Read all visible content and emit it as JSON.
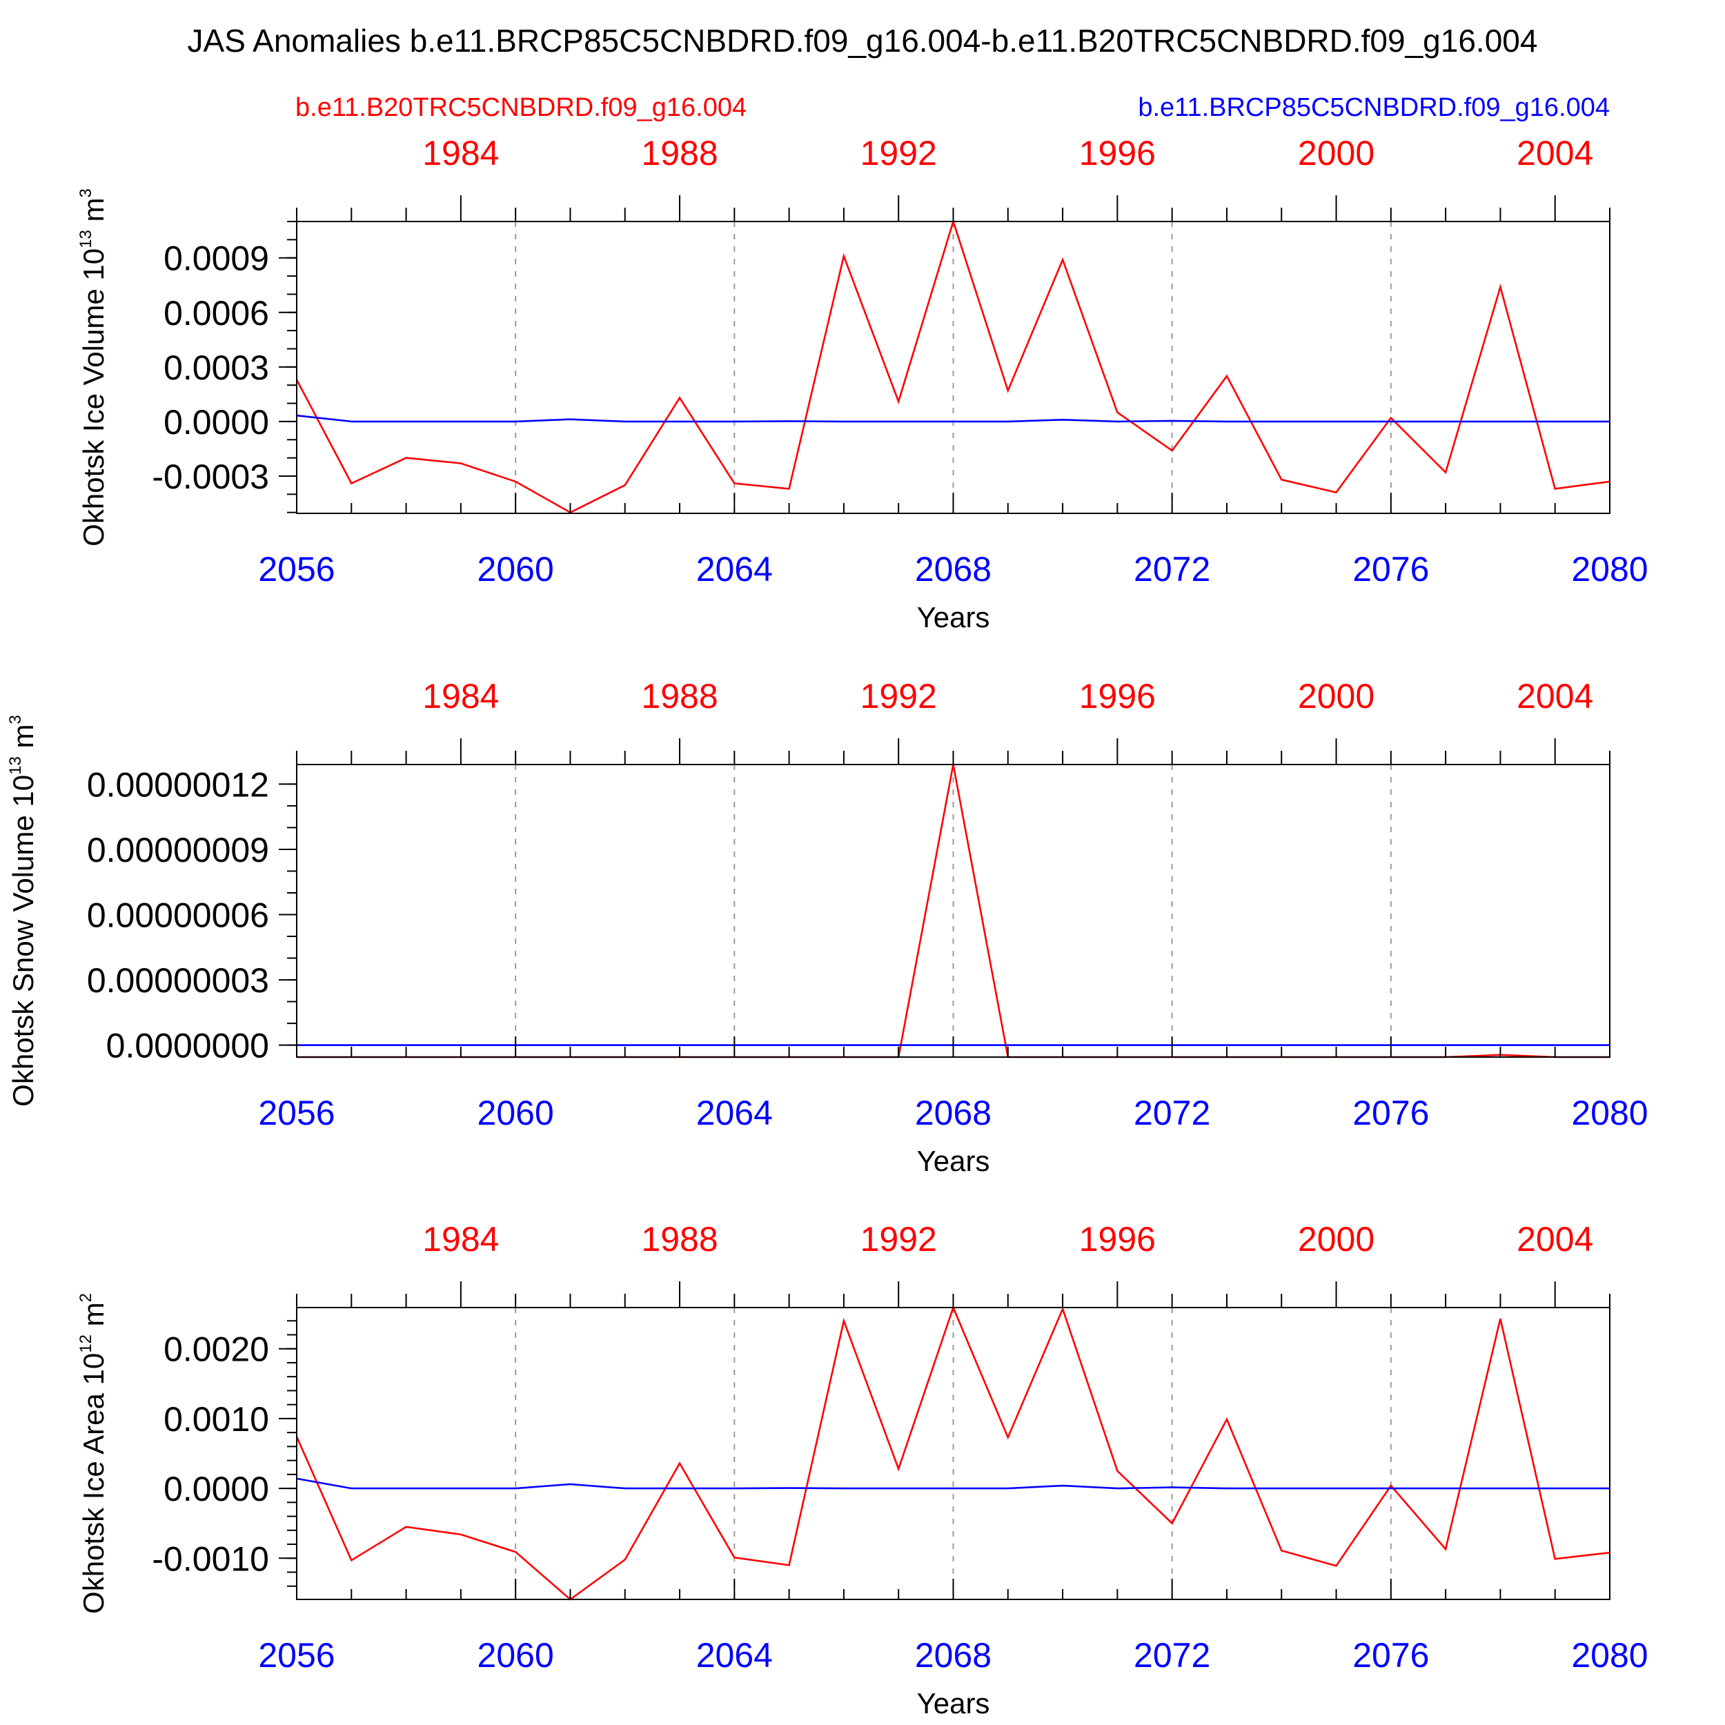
{
  "title": "JAS Anomalies b.e11.BRCP85C5CNBDRD.f09_g16.004-b.e11.B20TRC5CNBDRD.f09_g16.004",
  "legend": {
    "left": "b.e11.B20TRC5CNBDRD.f09_g16.004",
    "right": "b.e11.BRCP85C5CNBDRD.f09_g16.004"
  },
  "colors": {
    "historical": "#ff0000",
    "rcp85": "#0000ff",
    "axis": "#000000",
    "grid": "#9a9a9a"
  },
  "chart_data": [
    {
      "type": "line",
      "ylabel": "Okhotsk Ice Volume",
      "yunit_base": "10",
      "yunit_exp": "13",
      "yunit_suffix": "m",
      "yunit_suffix_exp": "3",
      "xlabel": "Years",
      "x_bottom": [
        2056,
        2057,
        2058,
        2059,
        2060,
        2061,
        2062,
        2063,
        2064,
        2065,
        2066,
        2067,
        2068,
        2069,
        2070,
        2071,
        2072,
        2073,
        2074,
        2075,
        2076,
        2077,
        2078,
        2079,
        2080
      ],
      "x_top_ticks": [
        1984,
        1988,
        1992,
        1996,
        2000,
        2004
      ],
      "x_top_labels": [
        "1984",
        "1988",
        "1992",
        "1996",
        "2000",
        "2004"
      ],
      "x_bottom_ticks": [
        2056,
        2060,
        2064,
        2068,
        2072,
        2076,
        2080
      ],
      "x_bottom_labels": [
        "2056",
        "2060",
        "2064",
        "2068",
        "2072",
        "2076",
        "2080"
      ],
      "xlim_bottom": [
        2056,
        2080
      ],
      "xlim_top": [
        1981,
        2005
      ],
      "ylim": [
        -0.000505,
        0.0011
      ],
      "yticks": [
        -0.0003,
        0.0,
        0.0003,
        0.0006,
        0.0009
      ],
      "ytick_labels": [
        "-0.0003",
        "0.0000",
        "0.0003",
        "0.0006",
        "0.0009"
      ],
      "yminor_step": 0.0001,
      "grid_vertical": [
        2060,
        2064,
        2068,
        2072,
        2076
      ],
      "series": [
        {
          "name": "b.e11.B20TRC5CNBDRD.f09_g16.004",
          "color_key": "historical",
          "values": [
            0.00023,
            -0.00034,
            -0.0002,
            -0.00023,
            -0.00033,
            -0.0005,
            -0.00035,
            0.00013,
            -0.00034,
            -0.00037,
            0.00091,
            0.00011,
            0.0011,
            0.00017,
            0.00089,
            5e-05,
            -0.00016,
            0.00025,
            -0.00032,
            -0.00039,
            2e-05,
            -0.00028,
            0.00074,
            -0.00037,
            -0.00033
          ]
        },
        {
          "name": "b.e11.BRCP85C5CNBDRD.f09_g16.004",
          "color_key": "rcp85",
          "values": [
            3.3e-05,
            0.0,
            0.0,
            0.0,
            0.0,
            1.2e-05,
            0.0,
            0.0,
            0.0,
            2e-06,
            0.0,
            0.0,
            0.0,
            0.0,
            1e-05,
            0.0,
            4e-06,
            0.0,
            0.0,
            0.0,
            0.0,
            0.0,
            0.0,
            0.0,
            0.0
          ]
        }
      ]
    },
    {
      "type": "line",
      "ylabel": "Okhotsk Snow Volume",
      "yunit_base": "10",
      "yunit_exp": "13",
      "yunit_suffix": "m",
      "yunit_suffix_exp": "3",
      "xlabel": "Years",
      "x_bottom": [
        2056,
        2057,
        2058,
        2059,
        2060,
        2061,
        2062,
        2063,
        2064,
        2065,
        2066,
        2067,
        2068,
        2069,
        2070,
        2071,
        2072,
        2073,
        2074,
        2075,
        2076,
        2077,
        2078,
        2079,
        2080
      ],
      "x_top_ticks": [
        1984,
        1988,
        1992,
        1996,
        2000,
        2004
      ],
      "x_top_labels": [
        "1984",
        "1988",
        "1992",
        "1996",
        "2000",
        "2004"
      ],
      "x_bottom_ticks": [
        2056,
        2060,
        2064,
        2068,
        2072,
        2076,
        2080
      ],
      "x_bottom_labels": [
        "2056",
        "2060",
        "2064",
        "2068",
        "2072",
        "2076",
        "2080"
      ],
      "xlim_bottom": [
        2056,
        2080
      ],
      "xlim_top": [
        1981,
        2005
      ],
      "ylim": [
        -5.5e-09,
        1.29e-07
      ],
      "yticks": [
        0.0,
        3e-08,
        6e-08,
        9e-08,
        1.2e-07
      ],
      "ytick_labels": [
        "0.0000000",
        "0.00000003",
        "0.00000006",
        "0.00000009",
        "0.00000012"
      ],
      "yminor_step": 1e-08,
      "grid_vertical": [
        2060,
        2064,
        2068,
        2072,
        2076
      ],
      "series": [
        {
          "name": "b.e11.B20TRC5CNBDRD.f09_g16.004",
          "color_key": "historical",
          "values": [
            -5.5e-09,
            -5.5e-09,
            -5.5e-09,
            -5.5e-09,
            -5.5e-09,
            -5.5e-09,
            -5.5e-09,
            -5.5e-09,
            -5.5e-09,
            -5.5e-09,
            -5.5e-09,
            -5.5e-09,
            1.29e-07,
            -5.5e-09,
            -5.5e-09,
            -5.5e-09,
            -5.5e-09,
            -5.5e-09,
            -5.5e-09,
            -5.5e-09,
            -5.5e-09,
            -5.5e-09,
            -4.5e-09,
            -5.5e-09,
            -5.5e-09
          ]
        },
        {
          "name": "b.e11.BRCP85C5CNBDRD.f09_g16.004",
          "color_key": "rcp85",
          "values": [
            0,
            0,
            0,
            0,
            0,
            0,
            0,
            0,
            0,
            0,
            0,
            0,
            0,
            0,
            0,
            0,
            0,
            0,
            0,
            0,
            0,
            0,
            0,
            0,
            0
          ]
        }
      ]
    },
    {
      "type": "line",
      "ylabel": "Okhotsk Ice Area",
      "yunit_base": "10",
      "yunit_exp": "12",
      "yunit_suffix": "m",
      "yunit_suffix_exp": "2",
      "xlabel": "Years",
      "x_bottom": [
        2056,
        2057,
        2058,
        2059,
        2060,
        2061,
        2062,
        2063,
        2064,
        2065,
        2066,
        2067,
        2068,
        2069,
        2070,
        2071,
        2072,
        2073,
        2074,
        2075,
        2076,
        2077,
        2078,
        2079,
        2080
      ],
      "x_top_ticks": [
        1984,
        1988,
        1992,
        1996,
        2000,
        2004
      ],
      "x_top_labels": [
        "1984",
        "1988",
        "1992",
        "1996",
        "2000",
        "2004"
      ],
      "x_bottom_ticks": [
        2056,
        2060,
        2064,
        2068,
        2072,
        2076,
        2080
      ],
      "x_bottom_labels": [
        "2056",
        "2060",
        "2064",
        "2068",
        "2072",
        "2076",
        "2080"
      ],
      "xlim_bottom": [
        2056,
        2080
      ],
      "xlim_top": [
        1981,
        2005
      ],
      "ylim": [
        -0.00159,
        0.00259
      ],
      "yticks": [
        -0.001,
        0.0,
        0.001,
        0.002
      ],
      "ytick_labels": [
        "-0.0010",
        "0.0000",
        "0.0010",
        "0.0020"
      ],
      "yminor_step": 0.0002,
      "grid_vertical": [
        2060,
        2064,
        2068,
        2072,
        2076
      ],
      "series": [
        {
          "name": "b.e11.B20TRC5CNBDRD.f09_g16.004",
          "color_key": "historical",
          "values": [
            0.00074,
            -0.00103,
            -0.00055,
            -0.00066,
            -0.00091,
            -0.00159,
            -0.00102,
            0.00036,
            -0.00099,
            -0.0011,
            0.0024,
            0.00028,
            0.00259,
            0.00073,
            0.00257,
            0.00025,
            -0.0005,
            0.00099,
            -0.00089,
            -0.00111,
            4e-05,
            -0.00087,
            0.00243,
            -0.00101,
            -0.00092
          ]
        },
        {
          "name": "b.e11.BRCP85C5CNBDRD.f09_g16.004",
          "color_key": "rcp85",
          "values": [
            0.00014,
            0.0,
            0.0,
            0.0,
            0.0,
            6e-05,
            0.0,
            0.0,
            0.0,
            5e-06,
            0.0,
            0.0,
            0.0,
            0.0,
            4e-05,
            0.0,
            1.5e-05,
            0.0,
            0.0,
            0.0,
            0.0,
            0.0,
            0.0,
            0.0,
            0.0
          ]
        }
      ]
    }
  ]
}
